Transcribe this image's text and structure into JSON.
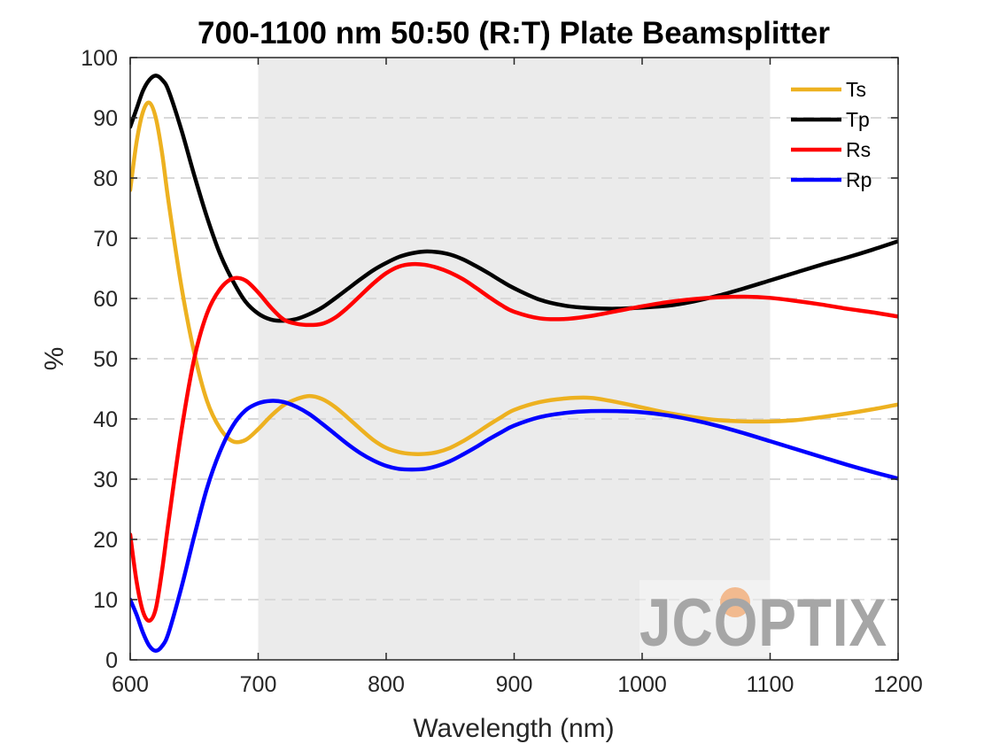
{
  "chart_data": {
    "type": "line",
    "title": "700-1100 nm 50:50 (R:T) Plate Beamsplitter",
    "xlabel": "Wavelength (nm)",
    "ylabel": "%",
    "xlim": [
      600,
      1200
    ],
    "ylim": [
      0,
      100
    ],
    "xticks": [
      600,
      700,
      800,
      900,
      1000,
      1100,
      1200
    ],
    "yticks": [
      0,
      10,
      20,
      30,
      40,
      50,
      60,
      70,
      80,
      90,
      100
    ],
    "grid": "horizontal dashed",
    "legend_position": "top-right",
    "highlight_band": [
      700,
      1100
    ],
    "series": [
      {
        "name": "Ts",
        "color": "#EDB120",
        "x": [
          600,
          605,
          610,
          615,
          620,
          625,
          630,
          640,
          650,
          660,
          670,
          680,
          690,
          700,
          710,
          720,
          730,
          740,
          750,
          760,
          770,
          780,
          790,
          800,
          810,
          820,
          830,
          840,
          850,
          860,
          870,
          880,
          890,
          900,
          920,
          940,
          960,
          980,
          1000,
          1020,
          1040,
          1060,
          1080,
          1100,
          1120,
          1140,
          1160,
          1180,
          1200
        ],
        "y": [
          78,
          86,
          91,
          92.5,
          90,
          84,
          76,
          62,
          51,
          43,
          38.5,
          36.3,
          36.5,
          38.3,
          40.5,
          42.3,
          43.3,
          43.8,
          43.3,
          42,
          40.2,
          38.3,
          36.5,
          35.2,
          34.5,
          34.2,
          34.2,
          34.5,
          35.2,
          36.3,
          37.6,
          39,
          40.3,
          41.5,
          42.8,
          43.4,
          43.5,
          42.8,
          41.9,
          41,
          40.3,
          39.8,
          39.6,
          39.6,
          39.8,
          40.3,
          40.9,
          41.6,
          42.4
        ]
      },
      {
        "name": "Tp",
        "color": "#000000",
        "x": [
          600,
          605,
          610,
          615,
          620,
          625,
          630,
          640,
          650,
          660,
          670,
          680,
          690,
          700,
          710,
          720,
          730,
          740,
          750,
          760,
          770,
          780,
          790,
          800,
          810,
          820,
          830,
          840,
          850,
          860,
          870,
          880,
          890,
          900,
          920,
          940,
          960,
          980,
          1000,
          1020,
          1040,
          1060,
          1080,
          1100,
          1120,
          1140,
          1160,
          1180,
          1200
        ],
        "y": [
          88.5,
          91.5,
          94.5,
          96.3,
          97,
          96.3,
          94.5,
          88,
          80.5,
          73.5,
          67.5,
          63,
          59.5,
          57.5,
          56.5,
          56.3,
          56.6,
          57.4,
          58.5,
          60,
          61.6,
          63.2,
          64.7,
          65.9,
          66.9,
          67.5,
          67.8,
          67.7,
          67.3,
          66.5,
          65.4,
          64.2,
          62.9,
          61.7,
          59.8,
          58.8,
          58.4,
          58.3,
          58.5,
          58.8,
          59.5,
          60.5,
          61.7,
          63,
          64.3,
          65.6,
          66.8,
          68.1,
          69.5
        ]
      },
      {
        "name": "Rs",
        "color": "#FF0000",
        "x": [
          600,
          605,
          610,
          615,
          620,
          625,
          630,
          640,
          650,
          660,
          670,
          680,
          690,
          700,
          710,
          720,
          730,
          740,
          750,
          760,
          770,
          780,
          790,
          800,
          810,
          820,
          830,
          840,
          850,
          860,
          870,
          880,
          890,
          900,
          920,
          940,
          960,
          980,
          1000,
          1020,
          1040,
          1060,
          1080,
          1100,
          1120,
          1140,
          1160,
          1180,
          1200
        ],
        "y": [
          20.8,
          13,
          8,
          6.5,
          8.5,
          15,
          23,
          38,
          50,
          57.5,
          61.5,
          63.3,
          63,
          61,
          58.5,
          56.5,
          55.8,
          55.6,
          55.8,
          56.8,
          58.5,
          60.5,
          62.5,
          64.2,
          65.3,
          65.7,
          65.6,
          65.1,
          64.3,
          63.2,
          61.8,
          60.3,
          58.9,
          57.8,
          56.7,
          56.6,
          57.1,
          57.9,
          58.7,
          59.4,
          59.9,
          60.2,
          60.3,
          60.1,
          59.6,
          59,
          58.3,
          57.7,
          57
        ]
      },
      {
        "name": "Rp",
        "color": "#0000FF",
        "x": [
          600,
          605,
          610,
          615,
          620,
          625,
          630,
          640,
          650,
          660,
          670,
          680,
          690,
          700,
          710,
          720,
          730,
          740,
          750,
          760,
          770,
          780,
          790,
          800,
          810,
          820,
          830,
          840,
          850,
          860,
          870,
          880,
          890,
          900,
          920,
          940,
          960,
          980,
          1000,
          1020,
          1040,
          1060,
          1080,
          1100,
          1120,
          1140,
          1160,
          1180,
          1200
        ],
        "y": [
          10,
          7.5,
          4.5,
          2.3,
          1.5,
          2.3,
          4.5,
          12,
          20.5,
          28.5,
          34.5,
          38.8,
          41.4,
          42.6,
          43,
          42.8,
          42,
          40.8,
          39.2,
          37.5,
          35.8,
          34.3,
          33.1,
          32.2,
          31.7,
          31.6,
          31.7,
          32.2,
          33,
          34.1,
          35.3,
          36.6,
          37.8,
          38.9,
          40.3,
          41,
          41.3,
          41.3,
          41.1,
          40.6,
          39.8,
          38.8,
          37.6,
          36.3,
          35,
          33.7,
          32.4,
          31.2,
          30.1
        ]
      }
    ]
  },
  "watermark": {
    "text": "JCOPTIX",
    "text_color": "#a6a6a6",
    "accent_color": "#f2b07e"
  },
  "colors": {
    "band_fill": "#ebebeb",
    "grid": "#d9d9d9",
    "axis": "#262626"
  }
}
